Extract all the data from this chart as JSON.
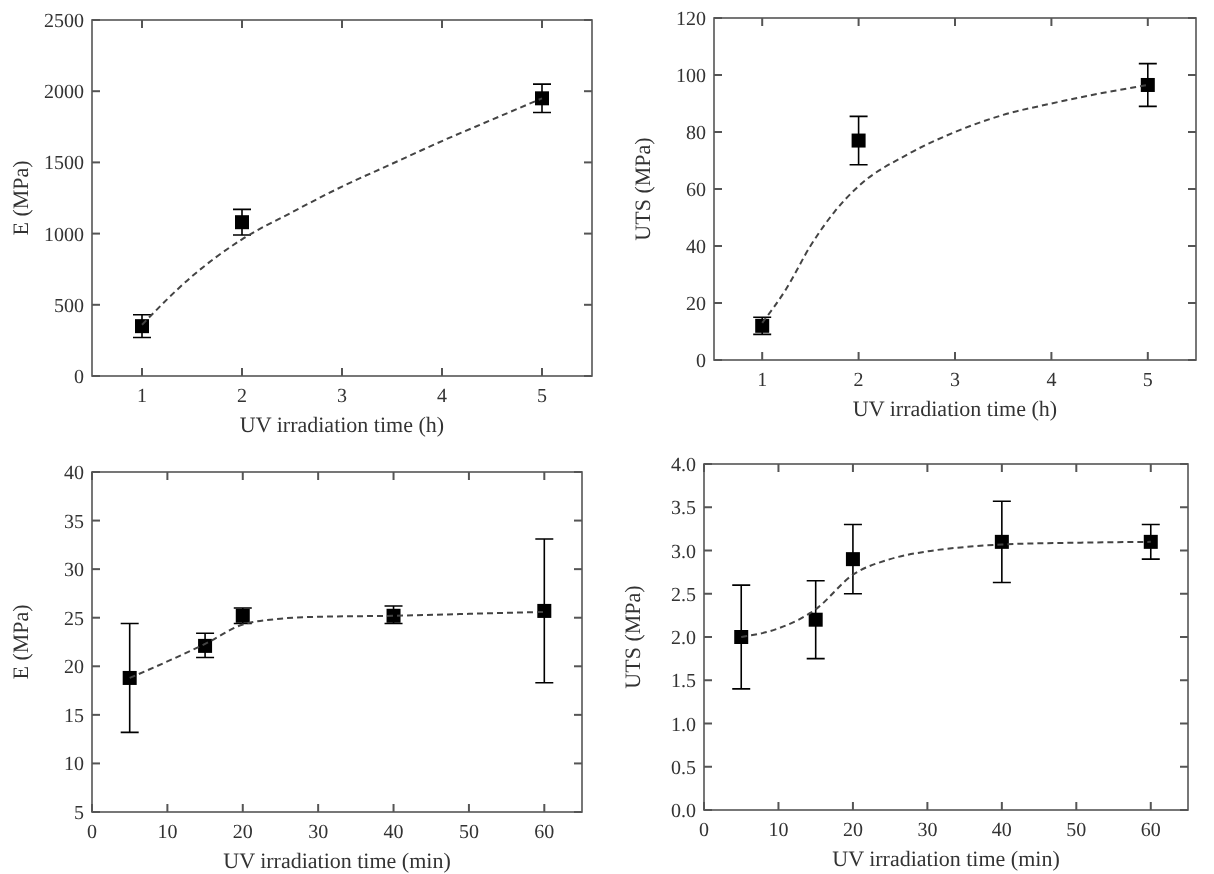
{
  "chart_data": [
    {
      "type": "scatter",
      "xlabel": "UV irradiation time (h)",
      "ylabel": "E (MPa)",
      "xlim": [
        0.5,
        5.5
      ],
      "xticks": [
        1,
        2,
        3,
        4,
        5
      ],
      "ylim": [
        0,
        2500
      ],
      "yticks": [
        0,
        500,
        1000,
        1500,
        2000,
        2500
      ],
      "series": [
        {
          "type": "scatter",
          "x": [
            1,
            2,
            5
          ],
          "values": [
            350,
            1080,
            1950
          ],
          "errors": [
            80,
            90,
            100
          ],
          "color": "#000000",
          "marker": "square"
        },
        {
          "type": "line",
          "x": [
            1,
            1.5,
            2,
            2.5,
            3,
            3.5,
            4,
            4.5,
            5
          ],
          "values": [
            360,
            700,
            960,
            1150,
            1330,
            1490,
            1650,
            1800,
            1950
          ],
          "color": "#444444",
          "line_style": "dashed",
          "marker": "none"
        }
      ]
    },
    {
      "type": "scatter",
      "xlabel": "UV irradiation time (h)",
      "ylabel": "UTS (MPa)",
      "xlim": [
        0.5,
        5.5
      ],
      "xticks": [
        1,
        2,
        3,
        4,
        5
      ],
      "ylim": [
        0,
        120
      ],
      "yticks": [
        0,
        20,
        40,
        60,
        80,
        100,
        120
      ],
      "series": [
        {
          "type": "scatter",
          "x": [
            1,
            2,
            5
          ],
          "values": [
            12,
            77,
            96.5
          ],
          "errors": [
            3,
            8.5,
            7.5
          ],
          "color": "#000000",
          "marker": "square"
        },
        {
          "type": "line",
          "x": [
            1,
            1.25,
            1.5,
            1.75,
            2,
            2.5,
            3,
            3.5,
            4,
            4.5,
            5
          ],
          "values": [
            13,
            25,
            40,
            52,
            61,
            72,
            80,
            86,
            90,
            93.5,
            96.5
          ],
          "color": "#444444",
          "line_style": "dashed",
          "marker": "none"
        }
      ]
    },
    {
      "type": "scatter",
      "xlabel": "UV irradiation time (min)",
      "ylabel": "E (MPa)",
      "xlim": [
        0,
        65
      ],
      "xticks": [
        0,
        10,
        20,
        30,
        40,
        50,
        60
      ],
      "ylim": [
        5,
        40
      ],
      "yticks": [
        5,
        10,
        15,
        20,
        25,
        30,
        35,
        40
      ],
      "series": [
        {
          "type": "scatter",
          "x": [
            5,
            15,
            20,
            40,
            60
          ],
          "values": [
            18.8,
            22.1,
            25.2,
            25.2,
            25.7
          ],
          "errors": [
            [
              13.2,
              24.4
            ],
            [
              20.9,
              23.4
            ],
            [
              24.4,
              26.0
            ],
            [
              24.4,
              26.2
            ],
            [
              18.3,
              33.1
            ]
          ],
          "color": "#000000",
          "marker": "square"
        },
        {
          "type": "line",
          "x": [
            5,
            10,
            15,
            20,
            25,
            30,
            40,
            50,
            60
          ],
          "values": [
            18.8,
            20.5,
            22.3,
            24.3,
            24.9,
            25.1,
            25.2,
            25.4,
            25.6
          ],
          "color": "#444444",
          "line_style": "dashed",
          "marker": "none"
        }
      ]
    },
    {
      "type": "scatter",
      "xlabel": "UV irradiation time (min)",
      "ylabel": "UTS (MPa)",
      "xlim": [
        0,
        65
      ],
      "xticks": [
        0,
        10,
        20,
        30,
        40,
        50,
        60
      ],
      "ylim": [
        0,
        4
      ],
      "yticks": [
        {
          "value": 0,
          "label": "0.0"
        },
        {
          "value": 0.5,
          "label": "0.5"
        },
        {
          "value": 1,
          "label": "1.0"
        },
        {
          "value": 1.5,
          "label": "1.5"
        },
        {
          "value": 2,
          "label": "2.0"
        },
        {
          "value": 2.5,
          "label": "2.5"
        },
        {
          "value": 3,
          "label": "3.0"
        },
        {
          "value": 3.5,
          "label": "3.5"
        },
        {
          "value": 4,
          "label": "4.0"
        }
      ],
      "series": [
        {
          "type": "scatter",
          "x": [
            5,
            15,
            20,
            40,
            60
          ],
          "values": [
            2.0,
            2.2,
            2.9,
            3.1,
            3.1
          ],
          "errors": [
            [
              1.4,
              2.6
            ],
            [
              1.75,
              2.65
            ],
            [
              2.5,
              3.3
            ],
            [
              2.63,
              3.57
            ],
            [
              2.9,
              3.3
            ]
          ],
          "color": "#000000",
          "marker": "square"
        },
        {
          "type": "line",
          "x": [
            5,
            10,
            15,
            20,
            25,
            30,
            35,
            40,
            50,
            60
          ],
          "values": [
            2.0,
            2.1,
            2.32,
            2.72,
            2.9,
            2.99,
            3.04,
            3.07,
            3.09,
            3.1
          ],
          "color": "#444444",
          "line_style": "dashed",
          "marker": "none"
        }
      ]
    }
  ]
}
